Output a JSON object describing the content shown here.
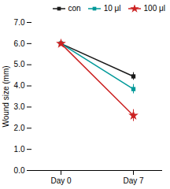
{
  "chart_data": {
    "type": "line",
    "categories": [
      "Day 0",
      "Day 7"
    ],
    "ylabel": "Wound size (mm)",
    "ylim": [
      0,
      7
    ],
    "yticks": [
      0,
      1,
      2,
      3,
      4,
      5,
      6,
      7
    ],
    "legend": "upper right",
    "series": [
      {
        "name": "con",
        "color": "#1a1a1a",
        "marker": "square",
        "values": [
          6.0,
          4.45
        ],
        "errors": [
          0.05,
          0.18
        ]
      },
      {
        "name": "10 μl",
        "color": "#009999",
        "marker": "square",
        "values": [
          6.0,
          3.85
        ],
        "errors": [
          0.05,
          0.22
        ]
      },
      {
        "name": "100 μl",
        "color": "#cc2222",
        "marker": "star",
        "values": [
          6.0,
          2.6
        ],
        "errors": [
          0.05,
          0.28
        ]
      }
    ]
  }
}
